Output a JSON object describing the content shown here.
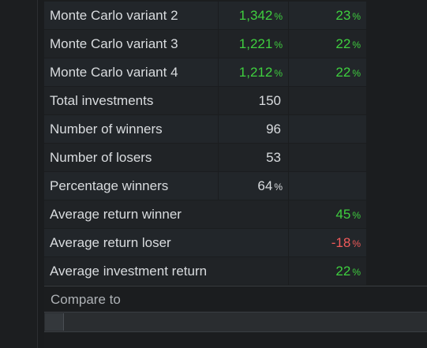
{
  "table": {
    "rows": [
      {
        "label": "Monte Carlo variant 2",
        "v1": "1,342",
        "v1pct": "%",
        "v2": "23",
        "v2pct": "%"
      },
      {
        "label": "Monte Carlo variant 3",
        "v1": "1,221",
        "v1pct": "%",
        "v2": "22",
        "v2pct": "%"
      },
      {
        "label": "Monte Carlo variant 4",
        "v1": "1,212",
        "v1pct": "%",
        "v2": "22",
        "v2pct": "%"
      },
      {
        "label": "Total investments",
        "v1": "150",
        "v1pct": "",
        "v2": "",
        "v2pct": ""
      },
      {
        "label": "Number of winners",
        "v1": "96",
        "v1pct": "",
        "v2": "",
        "v2pct": ""
      },
      {
        "label": "Number of losers",
        "v1": "53",
        "v1pct": "",
        "v2": "",
        "v2pct": ""
      },
      {
        "label": "Percentage winners",
        "v1": "64",
        "v1pct": "%",
        "v2": "",
        "v2pct": ""
      },
      {
        "label": "Average return winner",
        "v1": "",
        "v1pct": "",
        "v2": "45",
        "v2pct": "%"
      },
      {
        "label": "Average return loser",
        "v1": "",
        "v1pct": "",
        "v2": "-18",
        "v2pct": "%"
      },
      {
        "label": "Average investment return",
        "v1": "",
        "v1pct": "",
        "v2": "22",
        "v2pct": "%"
      }
    ]
  },
  "compare": {
    "label": "Compare to"
  },
  "colors": {
    "positive": "#3fcf3f",
    "negative": "#f15a5a"
  }
}
